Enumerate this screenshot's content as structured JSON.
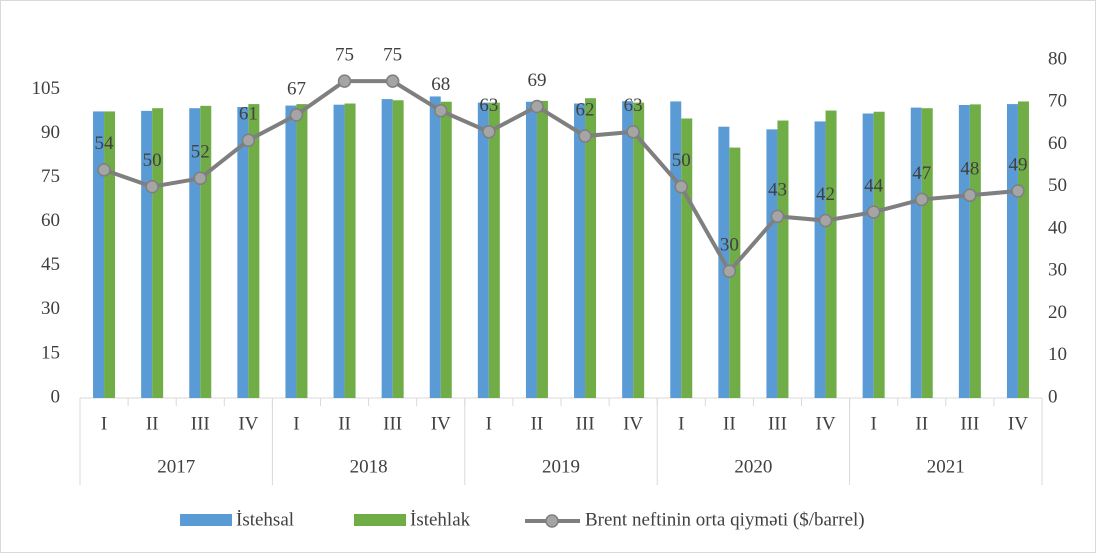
{
  "chart_data": {
    "type": "bar-line",
    "categories": [
      "I",
      "II",
      "III",
      "IV",
      "I",
      "II",
      "III",
      "IV",
      "I",
      "II",
      "III",
      "IV",
      "I",
      "II",
      "III",
      "IV",
      "I",
      "II",
      "III",
      "IV"
    ],
    "category_groups": [
      "2017",
      "2018",
      "2019",
      "2020",
      "2021"
    ],
    "ylim": [
      0,
      115
    ],
    "yticks": [
      0,
      15,
      30,
      45,
      60,
      75,
      90,
      105
    ],
    "y2lim": [
      0,
      80
    ],
    "y2ticks": [
      0,
      10,
      20,
      30,
      40,
      50,
      60,
      70,
      80
    ],
    "legend": "bottom",
    "series": [
      {
        "name": "İstehsal",
        "type": "bar",
        "color": "#5b9bd5",
        "values": [
          97.5,
          97.7,
          98.6,
          99,
          99.5,
          99.8,
          101.7,
          102.6,
          100.5,
          100.8,
          100.2,
          101,
          100.9,
          92.3,
          91.4,
          94.1,
          96.8,
          98.8,
          99.7,
          100
        ]
      },
      {
        "name": "İstehlak",
        "type": "bar",
        "color": "#70ad47",
        "values": [
          97.5,
          98.6,
          99.4,
          100,
          100,
          100.2,
          101.3,
          100.8,
          100.5,
          101.1,
          102,
          100.5,
          95.1,
          85.2,
          94.4,
          97.8,
          97.4,
          98.6,
          99.9,
          100.9
        ]
      },
      {
        "name": "Brent neftinin orta qiyməti ($/barrel)",
        "type": "line",
        "axis": "y2",
        "color": "#7f7f7f",
        "values": [
          54,
          50,
          52,
          61,
          67,
          75,
          75,
          68,
          63,
          69,
          62,
          63,
          50,
          30,
          43,
          42,
          44,
          47,
          48,
          49
        ]
      }
    ]
  }
}
